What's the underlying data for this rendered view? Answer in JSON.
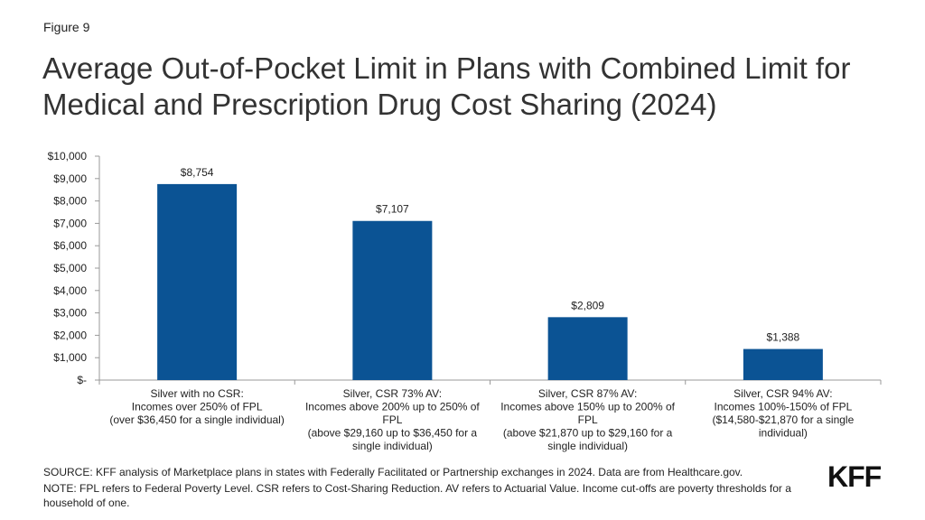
{
  "figure_label": "Figure 9",
  "title": "Average Out-of-Pocket Limit in Plans with Combined Limit for Medical and Prescription Drug Cost Sharing (2024)",
  "chart_data": {
    "type": "bar",
    "categories": [
      [
        "Silver with no CSR:",
        "Incomes over 250% of FPL",
        "(over $36,450 for a single individual)"
      ],
      [
        "Silver, CSR 73% AV:",
        "Incomes above 200% up to 250% of",
        "FPL",
        "(above $29,160 up to $36,450 for a",
        "single individual)"
      ],
      [
        "Silver, CSR 87% AV:",
        "Incomes above 150% up to 200% of",
        "FPL",
        "(above $21,870 up to $29,160 for a",
        "single individual)"
      ],
      [
        "Silver, CSR 94% AV:",
        "Incomes 100%-150% of FPL",
        "($14,580-$21,870 for a single",
        "individual)"
      ]
    ],
    "values": [
      8754,
      7107,
      2809,
      1388
    ],
    "data_labels": [
      "$8,754",
      "$7,107",
      "$2,809",
      "$1,388"
    ],
    "ylim": [
      0,
      10000
    ],
    "yticks": [
      0,
      1000,
      2000,
      3000,
      4000,
      5000,
      6000,
      7000,
      8000,
      9000,
      10000
    ],
    "ytick_labels": [
      "$-",
      "$1,000",
      "$2,000",
      "$3,000",
      "$4,000",
      "$5,000",
      "$6,000",
      "$7,000",
      "$8,000",
      "$9,000",
      "$10,000"
    ],
    "bar_color": "#0B5394",
    "grid": false,
    "legend": "none"
  },
  "source": "SOURCE: KFF analysis of Marketplace plans in states with Federally Facilitated or Partnership exchanges in 2024. Data are from Healthcare.gov.",
  "note": "NOTE: FPL refers to Federal Poverty Level. CSR refers to Cost-Sharing Reduction. AV refers to Actuarial Value. Income cut-offs are poverty thresholds for a household of one.",
  "logo_text": "KFF"
}
